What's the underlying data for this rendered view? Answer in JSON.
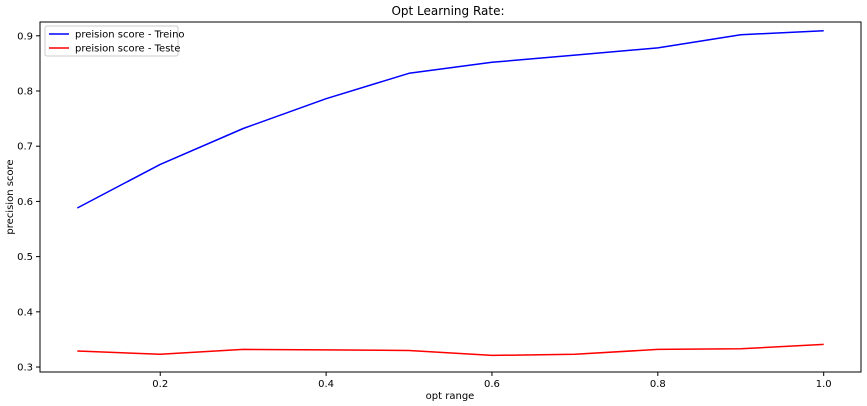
{
  "chart_data": {
    "type": "line",
    "title": "Opt Learning Rate:",
    "xlabel": "opt range",
    "ylabel": "precision score",
    "x": [
      0.1,
      0.2,
      0.3,
      0.4,
      0.5,
      0.6,
      0.7,
      0.8,
      0.9,
      1.0
    ],
    "xticks": [
      "0.2",
      "0.4",
      "0.6",
      "0.8",
      "1.0"
    ],
    "yticks": [
      "0.3",
      "0.4",
      "0.5",
      "0.6",
      "0.7",
      "0.8",
      "0.9"
    ],
    "xlim": [
      0.055,
      1.045
    ],
    "ylim": [
      0.291,
      0.925
    ],
    "grid": false,
    "legend_position": "top-left",
    "series": [
      {
        "name": "preision score - Treino",
        "color": "#0000ff",
        "values": [
          0.588,
          0.667,
          0.732,
          0.786,
          0.832,
          0.852,
          0.865,
          0.878,
          0.902,
          0.909
        ]
      },
      {
        "name": "preision score - Teste",
        "color": "#ff0000",
        "values": [
          0.329,
          0.323,
          0.332,
          0.331,
          0.33,
          0.321,
          0.323,
          0.332,
          0.333,
          0.341
        ]
      }
    ]
  }
}
